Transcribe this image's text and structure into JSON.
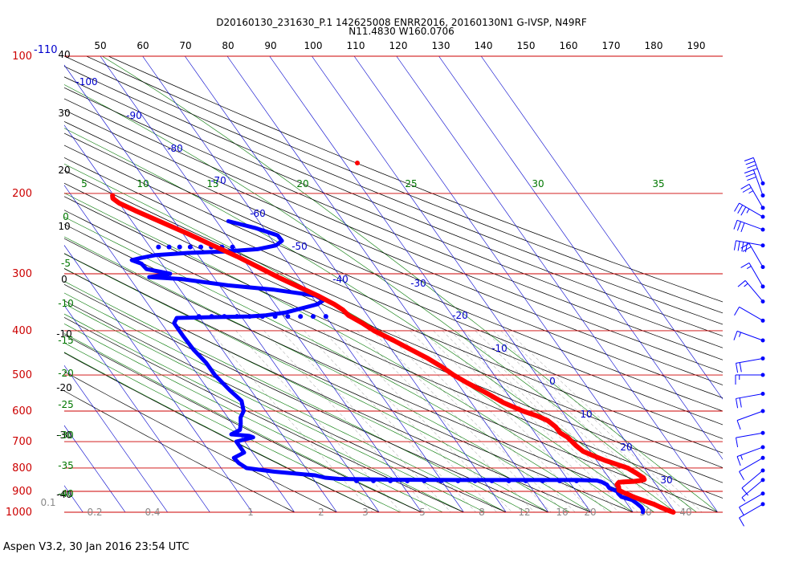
{
  "header": {
    "line1": "D20160130_231630_P.1 142625008 ENRR2016, 20160130N1 G-IVSP, N49RF",
    "line2": "N11.4830 W160.0706"
  },
  "footer": {
    "version_text": "Aspen V3.2, 30 Jan 2016  23:54 UTC"
  },
  "colors": {
    "isobar": "#cc0000",
    "isotherm": "#0000cc",
    "dry_adiabat": "#000000",
    "moist_adiabat": "#007700",
    "mixing_ratio": "#888888",
    "temperature": "#ff0000",
    "dewpoint": "#0000ff",
    "wind": "#0000ff"
  },
  "chart_data": {
    "type": "skew-t",
    "pressure_axis": {
      "labels": [
        "100",
        "200",
        "300",
        "400",
        "500",
        "600",
        "700",
        "800",
        "900",
        "1000"
      ],
      "range_hpa": [
        100,
        1000
      ],
      "scale": "log"
    },
    "top_mark": "-110",
    "top_theta_labels": [
      "50",
      "60",
      "70",
      "80",
      "90",
      "100",
      "110",
      "120",
      "130",
      "140",
      "150",
      "160",
      "170",
      "180",
      "190"
    ],
    "left_theta_labels": [
      "40",
      "30",
      "20",
      "10",
      "0",
      "-10",
      "-20",
      "-30",
      "-40"
    ],
    "isotherm_labels": [
      "-100",
      "-90",
      "-80",
      "-70",
      "-60",
      "-50",
      "-40",
      "-30",
      "-20",
      "-10",
      "0",
      "10",
      "20",
      "30"
    ],
    "moist_top_labels": [
      "5",
      "10",
      "15",
      "20",
      "25",
      "30",
      "35"
    ],
    "moist_left_labels": [
      "0",
      "-5",
      "-10",
      "-15",
      "-20",
      "-25",
      "-30",
      "-35",
      "-40"
    ],
    "mixing_ratio_labels": [
      "0.1",
      "0.2",
      "0.4",
      "1",
      "2",
      "3",
      "5",
      "8",
      "12",
      "16",
      "20",
      "30",
      "40"
    ],
    "series": [
      {
        "name": "Temperature",
        "points": [
          {
            "p": 1000,
            "t": 29.5
          },
          {
            "p": 990,
            "t": 28.5
          },
          {
            "p": 975,
            "t": 27.3
          },
          {
            "p": 960,
            "t": 26.2
          },
          {
            "p": 945,
            "t": 24.6
          },
          {
            "p": 925,
            "t": 22.6
          },
          {
            "p": 915,
            "t": 21.9
          },
          {
            "p": 905,
            "t": 21.0
          },
          {
            "p": 895,
            "t": 20.3
          },
          {
            "p": 880,
            "t": 20.8
          },
          {
            "p": 870,
            "t": 20.8
          },
          {
            "p": 860,
            "t": 21.6
          },
          {
            "p": 858,
            "t": 22.8
          },
          {
            "p": 856,
            "t": 25.3
          },
          {
            "p": 852,
            "t": 27.1
          },
          {
            "p": 848,
            "t": 28.1
          },
          {
            "p": 840,
            "t": 28.2
          },
          {
            "p": 820,
            "t": 27.2
          },
          {
            "p": 800,
            "t": 26.1
          },
          {
            "p": 785,
            "t": 24.1
          },
          {
            "p": 770,
            "t": 22.0
          },
          {
            "p": 750,
            "t": 19.8
          },
          {
            "p": 735,
            "t": 18.3
          },
          {
            "p": 715,
            "t": 17.6
          },
          {
            "p": 700,
            "t": 17.3
          },
          {
            "p": 685,
            "t": 17.0
          },
          {
            "p": 670,
            "t": 16.0
          },
          {
            "p": 650,
            "t": 15.9
          },
          {
            "p": 630,
            "t": 15.1
          },
          {
            "p": 615,
            "t": 13.4
          },
          {
            "p": 600,
            "t": 10.8
          },
          {
            "p": 575,
            "t": 7.6
          },
          {
            "p": 550,
            "t": 5.4
          },
          {
            "p": 520,
            "t": 2.3
          },
          {
            "p": 500,
            "t": 0.4
          },
          {
            "p": 480,
            "t": -1.0
          },
          {
            "p": 460,
            "t": -2.9
          },
          {
            "p": 440,
            "t": -5.4
          },
          {
            "p": 420,
            "t": -8.0
          },
          {
            "p": 400,
            "t": -11.0
          },
          {
            "p": 385,
            "t": -12.5
          },
          {
            "p": 370,
            "t": -14.5
          },
          {
            "p": 360,
            "t": -14.9
          },
          {
            "p": 350,
            "t": -16.0
          },
          {
            "p": 335,
            "t": -18.5
          },
          {
            "p": 320,
            "t": -21.6
          },
          {
            "p": 305,
            "t": -24.8
          },
          {
            "p": 290,
            "t": -27.8
          },
          {
            "p": 275,
            "t": -31.0
          },
          {
            "p": 260,
            "t": -34.9
          },
          {
            "p": 245,
            "t": -38.9
          },
          {
            "p": 230,
            "t": -43.5
          },
          {
            "p": 218,
            "t": -47.5
          },
          {
            "p": 210,
            "t": -50.0
          },
          {
            "p": 205,
            "t": -50.7
          },
          {
            "p": 202,
            "t": -50.3
          }
        ]
      },
      {
        "name": "Dewpoint",
        "points": [
          {
            "p": 1000,
            "t": 22.3
          },
          {
            "p": 990,
            "t": 22.7
          },
          {
            "p": 975,
            "t": 22.8
          },
          {
            "p": 955,
            "t": 22.3
          },
          {
            "p": 940,
            "t": 21.8
          },
          {
            "p": 925,
            "t": 19.8
          },
          {
            "p": 910,
            "t": 19.6
          },
          {
            "p": 900,
            "t": 19.7
          },
          {
            "p": 885,
            "t": 18.4
          },
          {
            "p": 870,
            "t": 18.4
          },
          {
            "p": 858,
            "t": 17.6
          },
          {
            "p": 852,
            "t": 16.7
          },
          {
            "p": 850,
            "t": 12.0
          },
          {
            "p": 850,
            "t": 0
          },
          {
            "p": 850,
            "t": -15
          },
          {
            "p": 849,
            "t": -30
          },
          {
            "p": 845,
            "t": -44
          },
          {
            "p": 840,
            "t": -47
          },
          {
            "p": 830,
            "t": -49
          },
          {
            "p": 815,
            "t": -58
          },
          {
            "p": 800,
            "t": -64
          },
          {
            "p": 780,
            "t": -65
          },
          {
            "p": 760,
            "t": -65.3
          },
          {
            "p": 740,
            "t": -62
          },
          {
            "p": 720,
            "t": -62
          },
          {
            "p": 700,
            "t": -62
          },
          {
            "p": 685,
            "t": -57.3
          },
          {
            "p": 680,
            "t": -58
          },
          {
            "p": 675,
            "t": -62
          },
          {
            "p": 660,
            "t": -59.2
          },
          {
            "p": 640,
            "t": -58
          },
          {
            "p": 620,
            "t": -57
          },
          {
            "p": 600,
            "t": -55.2
          },
          {
            "p": 570,
            "t": -54
          },
          {
            "p": 540,
            "t": -55
          },
          {
            "p": 500,
            "t": -56.0
          },
          {
            "p": 470,
            "t": -56
          },
          {
            "p": 440,
            "t": -56.8
          },
          {
            "p": 410,
            "t": -57
          },
          {
            "p": 385,
            "t": -57.0
          },
          {
            "p": 375,
            "t": -55.5
          },
          {
            "p": 373,
            "t": -44
          },
          {
            "p": 372,
            "t": -38
          },
          {
            "p": 370,
            "t": -34
          },
          {
            "p": 365,
            "t": -29
          },
          {
            "p": 350,
            "t": -20
          },
          {
            "p": 343,
            "t": -17.9
          },
          {
            "p": 335,
            "t": -19
          },
          {
            "p": 325,
            "t": -28
          },
          {
            "p": 318,
            "t": -38
          },
          {
            "p": 308,
            "t": -48
          },
          {
            "p": 305,
            "t": -55.2
          },
          {
            "p": 303,
            "t": -52.5
          },
          {
            "p": 300,
            "t": -49.7
          },
          {
            "p": 297,
            "t": -51.7
          },
          {
            "p": 293,
            "t": -54.5
          },
          {
            "p": 285,
            "t": -54.8
          },
          {
            "p": 280,
            "t": -56.5
          },
          {
            "p": 277,
            "t": -54
          },
          {
            "p": 273,
            "t": -50
          },
          {
            "p": 270,
            "t": -42
          },
          {
            "p": 268,
            "t": -33
          },
          {
            "p": 265,
            "t": -25
          },
          {
            "p": 260,
            "t": -20
          },
          {
            "p": 254,
            "t": -17.8
          },
          {
            "p": 247,
            "t": -17.9
          },
          {
            "p": 238,
            "t": -22
          },
          {
            "p": 230,
            "t": -27.2
          }
        ]
      }
    ],
    "wind_barbs": [
      {
        "p": 190,
        "speed_kt": 35,
        "dir_deg": 340
      },
      {
        "p": 202,
        "speed_kt": 30,
        "dir_deg": 340
      },
      {
        "p": 215,
        "speed_kt": 25,
        "dir_deg": 330
      },
      {
        "p": 225,
        "speed_kt": 35,
        "dir_deg": 300
      },
      {
        "p": 240,
        "speed_kt": 30,
        "dir_deg": 290
      },
      {
        "p": 260,
        "speed_kt": 40,
        "dir_deg": 280
      },
      {
        "p": 290,
        "speed_kt": 20,
        "dir_deg": 330
      },
      {
        "p": 320,
        "speed_kt": 15,
        "dir_deg": 330
      },
      {
        "p": 345,
        "speed_kt": 15,
        "dir_deg": 320
      },
      {
        "p": 380,
        "speed_kt": 10,
        "dir_deg": 300
      },
      {
        "p": 420,
        "speed_kt": 15,
        "dir_deg": 290
      },
      {
        "p": 460,
        "speed_kt": 20,
        "dir_deg": 260
      },
      {
        "p": 500,
        "speed_kt": 15,
        "dir_deg": 270
      },
      {
        "p": 550,
        "speed_kt": 20,
        "dir_deg": 260
      },
      {
        "p": 600,
        "speed_kt": 10,
        "dir_deg": 250
      },
      {
        "p": 670,
        "speed_kt": 10,
        "dir_deg": 260
      },
      {
        "p": 720,
        "speed_kt": 15,
        "dir_deg": 250
      },
      {
        "p": 760,
        "speed_kt": 10,
        "dir_deg": 240
      },
      {
        "p": 810,
        "speed_kt": 10,
        "dir_deg": 230
      },
      {
        "p": 850,
        "speed_kt": 5,
        "dir_deg": 230
      },
      {
        "p": 910,
        "speed_kt": 10,
        "dir_deg": 240
      },
      {
        "p": 960,
        "speed_kt": 10,
        "dir_deg": 240
      }
    ]
  }
}
